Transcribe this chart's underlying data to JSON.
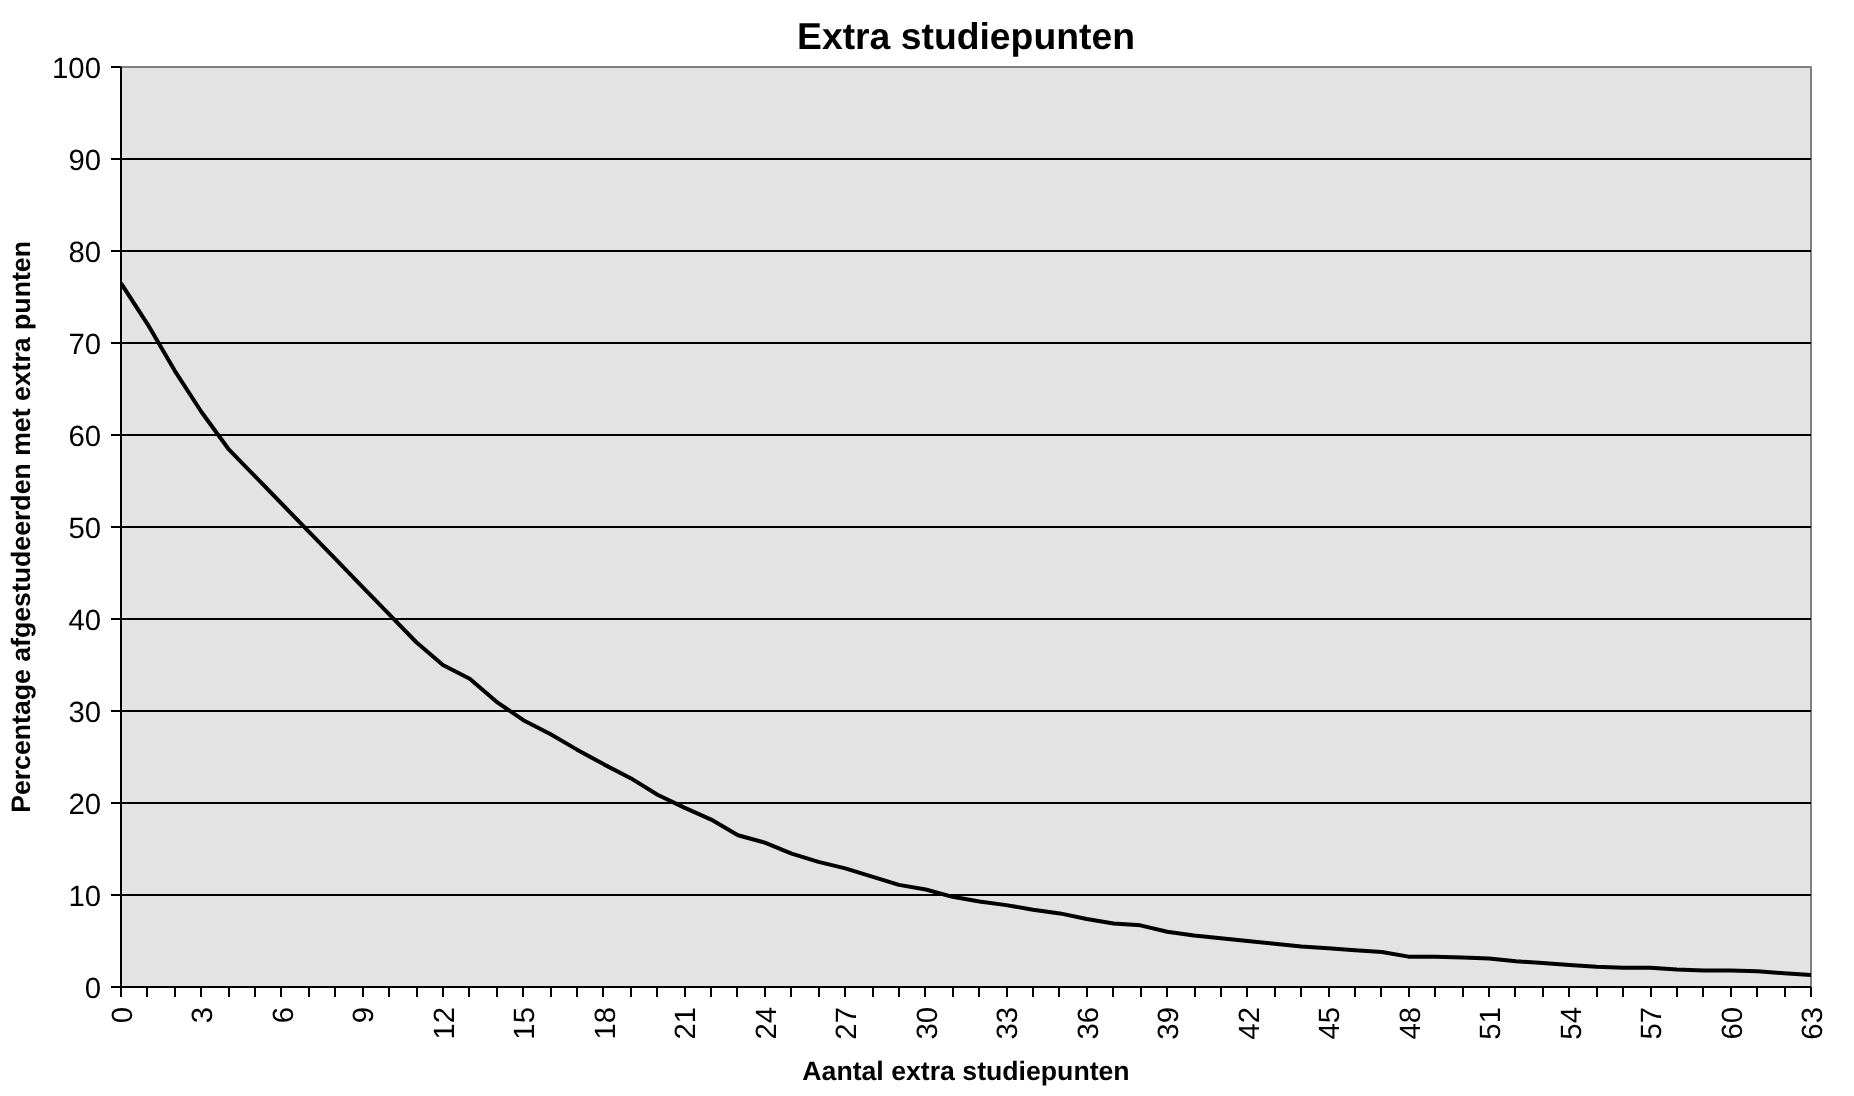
{
  "chart_data": {
    "type": "line",
    "title": "Extra studiepunten",
    "xlabel": "Aantal extra studiepunten",
    "ylabel": "Percentage afgestudeerden met extra punten",
    "categories": [
      "0",
      null,
      null,
      "3",
      null,
      null,
      "6",
      null,
      null,
      "9",
      null,
      null,
      "12",
      null,
      null,
      "15",
      null,
      null,
      "18",
      null,
      null,
      "21",
      null,
      null,
      "24",
      null,
      null,
      "27",
      null,
      null,
      "30",
      null,
      null,
      "33",
      null,
      null,
      "36",
      null,
      null,
      "39",
      null,
      null,
      "42",
      null,
      null,
      "45",
      null,
      null,
      "48",
      null,
      null,
      "51",
      null,
      null,
      "54",
      null,
      null,
      "57",
      null,
      null,
      "60",
      null,
      null,
      "63"
    ],
    "series": [
      {
        "color": "#000000",
        "values": [
          76.5,
          72,
          67,
          62.5,
          58.5,
          55.5,
          52.5,
          49.5,
          46.5,
          43.5,
          40.5,
          37.5,
          35,
          33.5,
          31,
          29,
          27.5,
          25.8,
          24.2,
          22.7,
          20.9,
          19.5,
          18.2,
          16.5,
          15.7,
          14.5,
          13.6,
          12.9,
          12,
          11.1,
          10.6,
          9.8,
          9.3,
          8.9,
          8.4,
          8,
          7.4,
          6.9,
          6.7,
          6,
          5.6,
          5.3,
          5,
          4.7,
          4.4,
          4.2,
          4,
          3.8,
          3.3,
          3.3,
          3.2,
          3.1,
          2.8,
          2.6,
          2.4,
          2.2,
          2.1,
          2.1,
          1.9,
          1.8,
          1.8,
          1.7,
          1.5,
          1.3
        ]
      }
    ],
    "ylim": [
      0,
      100
    ],
    "yticks": [
      0,
      10,
      20,
      30,
      40,
      50,
      60,
      70,
      80,
      90,
      100
    ],
    "grid": "y",
    "marker": "none",
    "line_style": "solid"
  }
}
